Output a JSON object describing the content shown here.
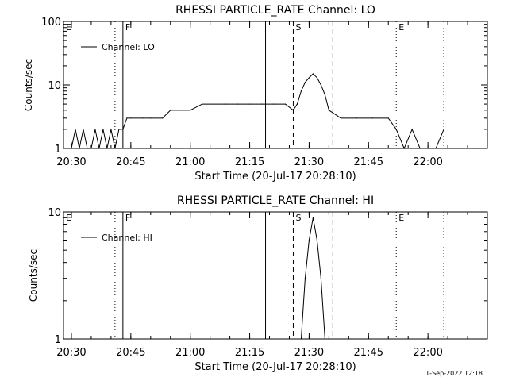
{
  "chart_data": [
    {
      "type": "line",
      "title": "RHESSI PARTICLE_RATE Channel: LO",
      "xlabel": "Start Time (20-Jul-17 20:28:10)",
      "ylabel": "Counts/sec",
      "yscale": "log",
      "ylim": [
        1,
        100
      ],
      "xlim_minutes": [
        20.5,
        22.28
      ],
      "x_tick_labels": [
        "20:30",
        "20:45",
        "21:00",
        "21:15",
        "21:30",
        "21:45",
        "22:00"
      ],
      "y_tick_labels": [
        "1",
        "10",
        "100"
      ],
      "legend": [
        "Channel: LO"
      ],
      "legend_position": "top-left",
      "markers": [
        {
          "label": "E",
          "time": "20:28",
          "style": "dotted"
        },
        {
          "label": "",
          "time": "20:41",
          "style": "dotted"
        },
        {
          "label": "F",
          "time": "20:43",
          "style": "solid"
        },
        {
          "label": "",
          "time": "21:19",
          "style": "solid"
        },
        {
          "label": "S",
          "time": "21:26",
          "style": "dashed"
        },
        {
          "label": "",
          "time": "21:36",
          "style": "dashed"
        },
        {
          "label": "E",
          "time": "21:52",
          "style": "dotted"
        },
        {
          "label": "",
          "time": "22:04",
          "style": "dotted"
        }
      ],
      "series": [
        {
          "name": "Channel: LO",
          "x": [
            "20:30",
            "20:31",
            "20:32",
            "20:33",
            "20:34",
            "20:35",
            "20:36",
            "20:37",
            "20:38",
            "20:39",
            "20:40",
            "20:41",
            "20:42",
            "20:43",
            "20:44",
            "20:45",
            "20:48",
            "20:50",
            "20:53",
            "20:55",
            "20:57",
            "21:00",
            "21:03",
            "21:06",
            "21:09",
            "21:12",
            "21:15",
            "21:18",
            "21:21",
            "21:24",
            "21:26",
            "21:27",
            "21:28",
            "21:29",
            "21:30",
            "21:31",
            "21:32",
            "21:33",
            "21:34",
            "21:35",
            "21:38",
            "21:42",
            "21:46",
            "21:50",
            "21:52",
            "21:54",
            "21:56",
            "21:58",
            "22:00",
            "22:02",
            "22:04"
          ],
          "y": [
            1,
            2,
            1,
            2,
            1,
            1,
            2,
            1,
            2,
            1,
            2,
            1,
            2,
            2,
            3,
            3,
            3,
            3,
            3,
            4,
            4,
            4,
            5,
            5,
            5,
            5,
            5,
            5,
            5,
            5,
            4,
            5,
            8,
            11,
            13,
            15,
            13,
            10,
            7,
            4,
            3,
            3,
            3,
            3,
            2,
            1,
            2,
            1,
            1,
            1,
            2
          ]
        }
      ]
    },
    {
      "type": "line",
      "title": "RHESSI PARTICLE_RATE Channel: HI",
      "xlabel": "Start Time (20-Jul-17 20:28:10)",
      "ylabel": "Counts/sec",
      "yscale": "log",
      "ylim": [
        1,
        10
      ],
      "x_tick_labels": [
        "20:30",
        "20:45",
        "21:00",
        "21:15",
        "21:30",
        "21:45",
        "22:00"
      ],
      "y_tick_labels": [
        "1",
        "10"
      ],
      "legend": [
        "Channel: HI"
      ],
      "legend_position": "top-left",
      "markers": [
        {
          "label": "E",
          "time": "20:28",
          "style": "dotted"
        },
        {
          "label": "",
          "time": "20:41",
          "style": "dotted"
        },
        {
          "label": "F",
          "time": "20:43",
          "style": "solid"
        },
        {
          "label": "",
          "time": "21:19",
          "style": "solid"
        },
        {
          "label": "S",
          "time": "21:26",
          "style": "dashed"
        },
        {
          "label": "",
          "time": "21:36",
          "style": "dashed"
        },
        {
          "label": "E",
          "time": "21:52",
          "style": "dotted"
        },
        {
          "label": "",
          "time": "22:04",
          "style": "dotted"
        }
      ],
      "series": [
        {
          "name": "Channel: HI",
          "x": [
            "21:28",
            "21:29",
            "21:30",
            "21:31",
            "21:32",
            "21:33",
            "21:34"
          ],
          "y": [
            1,
            3,
            6,
            9,
            6,
            3,
            1
          ]
        }
      ]
    }
  ],
  "footer": {
    "timestamp": "1-Sep-2022 12:18"
  }
}
